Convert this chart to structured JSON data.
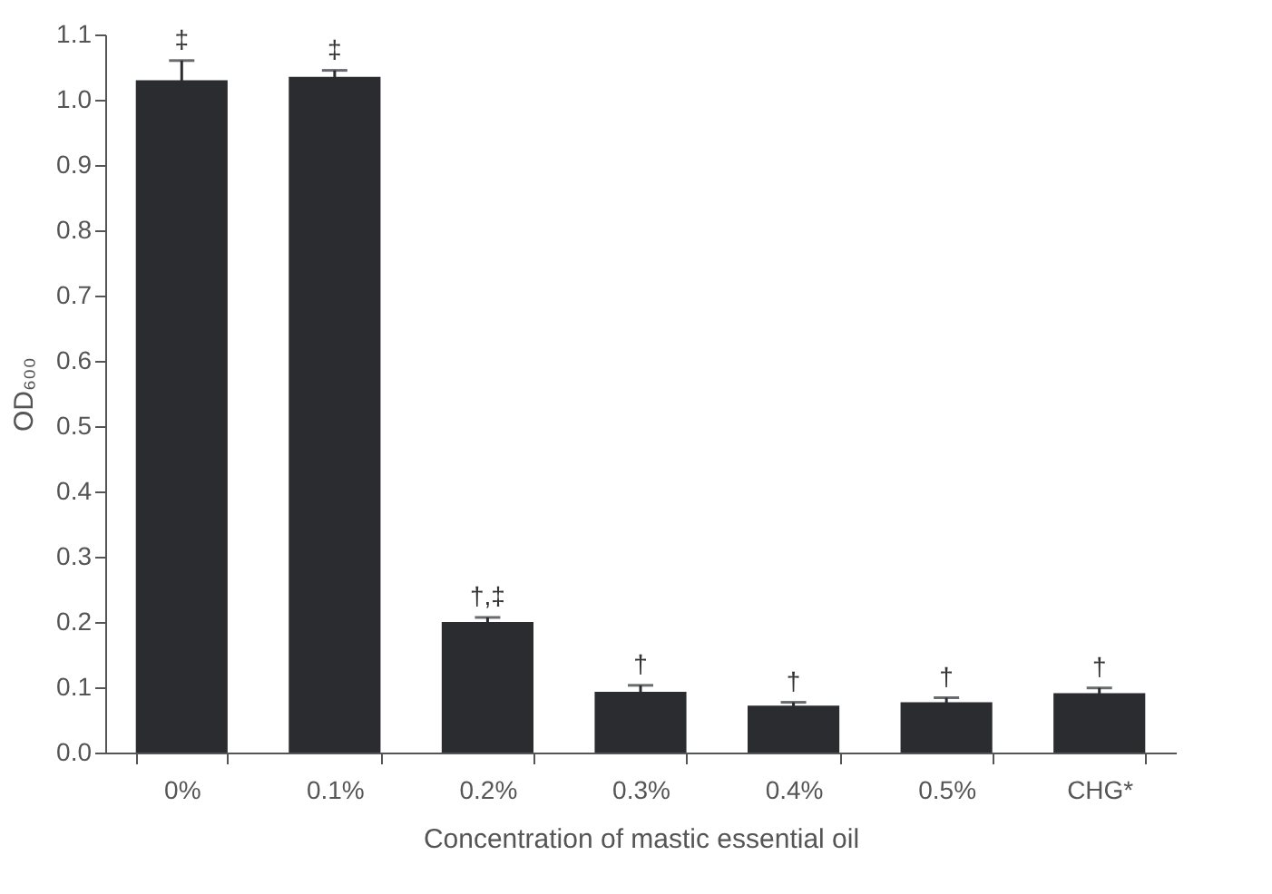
{
  "chart_data": {
    "type": "bar",
    "xlabel": "Concentration of mastic essential oil",
    "ylabel": "OD₆₀₀",
    "categories": [
      "0%",
      "0.1%",
      "0.2%",
      "0.3%",
      "0.4%",
      "0.5%",
      "CHG*"
    ],
    "values": [
      1.03,
      1.035,
      0.2,
      0.093,
      0.072,
      0.077,
      0.091
    ],
    "errors": [
      0.03,
      0.01,
      0.007,
      0.01,
      0.005,
      0.007,
      0.008
    ],
    "color": "#2b2c30",
    "ylim": [
      0,
      1.1
    ],
    "yticks": [
      {
        "value": 0,
        "label": "0.0"
      },
      0.1,
      0.2,
      0.3,
      0.4,
      0.5,
      0.6,
      0.7,
      0.8,
      0.9,
      {
        "value": 1,
        "label": "1.0"
      },
      1.1
    ],
    "grid": false,
    "annotations": [
      {
        "text": "‡",
        "x": "0%",
        "y": 1.06
      },
      {
        "text": "‡",
        "x": "0.1%",
        "y": 1.045
      },
      {
        "text": "†,‡",
        "x": "0.2%",
        "y": 0.207
      },
      {
        "text": "†",
        "x": "0.3%",
        "y": 0.103
      },
      {
        "text": "†",
        "x": "0.4%",
        "y": 0.077
      },
      {
        "text": "†",
        "x": "0.5%",
        "y": 0.084
      },
      {
        "text": "†",
        "x": "CHG*",
        "y": 0.099
      }
    ]
  }
}
